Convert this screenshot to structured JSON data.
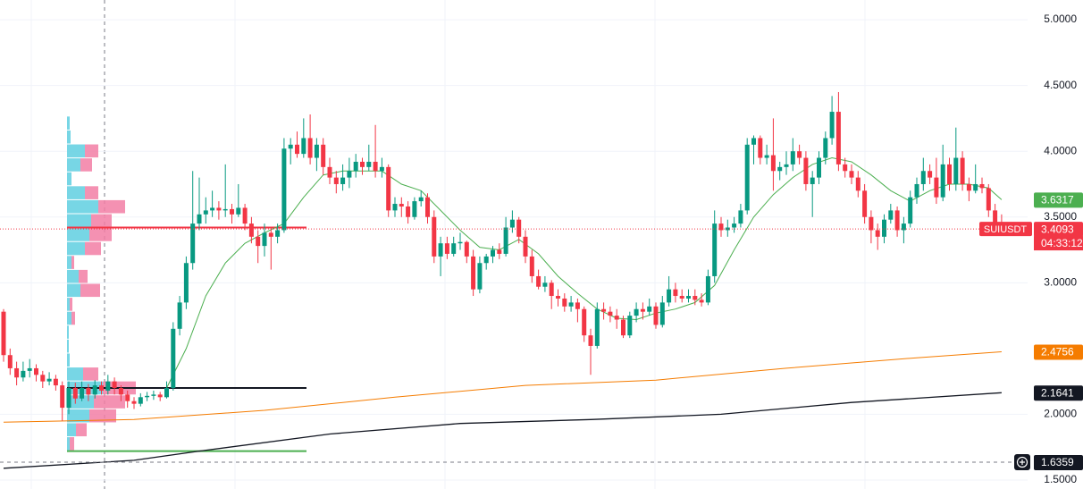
{
  "chart_data": {
    "type": "candlestick",
    "ohlc": [
      [
        2.78,
        2.8,
        2.4,
        2.45
      ],
      [
        2.45,
        2.5,
        2.3,
        2.35
      ],
      [
        2.35,
        2.4,
        2.22,
        2.28
      ],
      [
        2.28,
        2.4,
        2.25,
        2.33
      ],
      [
        2.33,
        2.42,
        2.28,
        2.35
      ],
      [
        2.35,
        2.38,
        2.25,
        2.3
      ],
      [
        2.3,
        2.33,
        2.2,
        2.25
      ],
      [
        2.25,
        2.32,
        2.22,
        2.27
      ],
      [
        2.27,
        2.3,
        2.18,
        2.22
      ],
      [
        2.22,
        2.25,
        1.95,
        2.05
      ],
      [
        2.05,
        2.25,
        2.0,
        2.2
      ],
      [
        2.2,
        2.24,
        2.08,
        2.12
      ],
      [
        2.12,
        2.25,
        2.1,
        2.2
      ],
      [
        2.2,
        2.23,
        2.1,
        2.15
      ],
      [
        2.15,
        2.26,
        2.12,
        2.22
      ],
      [
        2.22,
        2.25,
        2.15,
        2.18
      ],
      [
        2.18,
        2.3,
        2.15,
        2.25
      ],
      [
        2.25,
        2.28,
        2.15,
        2.2
      ],
      [
        2.2,
        2.22,
        2.1,
        2.15
      ],
      [
        2.15,
        2.18,
        2.05,
        2.1
      ],
      [
        2.1,
        2.13,
        2.04,
        2.08
      ],
      [
        2.08,
        2.16,
        2.06,
        2.13
      ],
      [
        2.13,
        2.17,
        2.1,
        2.14
      ],
      [
        2.14,
        2.18,
        2.11,
        2.15
      ],
      [
        2.15,
        2.17,
        2.1,
        2.13
      ],
      [
        2.13,
        2.25,
        2.12,
        2.2
      ],
      [
        2.2,
        2.7,
        2.18,
        2.65
      ],
      [
        2.65,
        2.9,
        2.6,
        2.85
      ],
      [
        2.85,
        3.2,
        2.8,
        3.15
      ],
      [
        3.15,
        3.85,
        3.1,
        3.45
      ],
      [
        3.45,
        3.8,
        3.4,
        3.52
      ],
      [
        3.52,
        3.65,
        3.45,
        3.55
      ],
      [
        3.55,
        3.7,
        3.5,
        3.57
      ],
      [
        3.57,
        3.62,
        3.48,
        3.55
      ],
      [
        3.55,
        3.9,
        3.5,
        3.56
      ],
      [
        3.56,
        3.6,
        3.45,
        3.52
      ],
      [
        3.52,
        3.75,
        3.5,
        3.57
      ],
      [
        3.57,
        3.6,
        3.4,
        3.45
      ],
      [
        3.45,
        3.5,
        3.3,
        3.35
      ],
      [
        3.35,
        3.4,
        3.15,
        3.28
      ],
      [
        3.28,
        3.45,
        3.2,
        3.38
      ],
      [
        3.38,
        3.42,
        3.1,
        3.35
      ],
      [
        3.35,
        3.45,
        3.3,
        3.4
      ],
      [
        3.4,
        4.1,
        3.38,
        4.02
      ],
      [
        4.02,
        4.1,
        3.9,
        4.05
      ],
      [
        4.05,
        4.15,
        3.95,
        3.98
      ],
      [
        3.98,
        4.25,
        3.95,
        4.1
      ],
      [
        4.1,
        4.28,
        3.9,
        3.95
      ],
      [
        3.95,
        4.1,
        3.85,
        4.05
      ],
      [
        4.05,
        4.1,
        3.82,
        3.88
      ],
      [
        3.88,
        3.95,
        3.75,
        3.8
      ],
      [
        3.8,
        3.85,
        3.68,
        3.75
      ],
      [
        3.75,
        3.9,
        3.7,
        3.8
      ],
      [
        3.8,
        3.95,
        3.72,
        3.85
      ],
      [
        3.85,
        3.98,
        3.8,
        3.92
      ],
      [
        3.92,
        3.95,
        3.82,
        3.88
      ],
      [
        3.88,
        4.05,
        3.85,
        3.92
      ],
      [
        3.92,
        4.2,
        3.8,
        3.85
      ],
      [
        3.85,
        3.95,
        3.8,
        3.88
      ],
      [
        3.88,
        3.9,
        3.5,
        3.55
      ],
      [
        3.55,
        3.65,
        3.5,
        3.6
      ],
      [
        3.6,
        3.65,
        3.5,
        3.58
      ],
      [
        3.58,
        3.62,
        3.45,
        3.5
      ],
      [
        3.5,
        3.65,
        3.48,
        3.62
      ],
      [
        3.62,
        3.7,
        3.58,
        3.65
      ],
      [
        3.65,
        3.68,
        3.45,
        3.5
      ],
      [
        3.5,
        3.55,
        3.15,
        3.2
      ],
      [
        3.2,
        3.35,
        3.05,
        3.3
      ],
      [
        3.3,
        3.35,
        3.18,
        3.22
      ],
      [
        3.22,
        3.35,
        3.2,
        3.3
      ],
      [
        3.3,
        3.38,
        3.25,
        3.31
      ],
      [
        3.31,
        3.32,
        3.15,
        3.2
      ],
      [
        3.2,
        3.25,
        2.9,
        2.95
      ],
      [
        2.95,
        3.2,
        2.92,
        3.15
      ],
      [
        3.15,
        3.22,
        3.1,
        3.2
      ],
      [
        3.2,
        3.28,
        3.15,
        3.25
      ],
      [
        3.25,
        3.3,
        3.18,
        3.22
      ],
      [
        3.22,
        3.5,
        3.2,
        3.42
      ],
      [
        3.42,
        3.55,
        3.38,
        3.48
      ],
      [
        3.48,
        3.5,
        3.3,
        3.35
      ],
      [
        3.35,
        3.4,
        3.15,
        3.2
      ],
      [
        3.2,
        3.25,
        3.0,
        3.05
      ],
      [
        3.05,
        3.1,
        2.95,
        2.97
      ],
      [
        2.97,
        3.05,
        2.93,
        3.0
      ],
      [
        3.0,
        3.02,
        2.8,
        2.9
      ],
      [
        2.9,
        2.95,
        2.82,
        2.88
      ],
      [
        2.88,
        2.92,
        2.78,
        2.82
      ],
      [
        2.82,
        2.9,
        2.78,
        2.85
      ],
      [
        2.85,
        2.88,
        2.7,
        2.8
      ],
      [
        2.8,
        2.82,
        2.55,
        2.6
      ],
      [
        2.6,
        2.65,
        2.3,
        2.52
      ],
      [
        2.52,
        2.85,
        2.5,
        2.8
      ],
      [
        2.8,
        2.85,
        2.72,
        2.78
      ],
      [
        2.78,
        2.82,
        2.7,
        2.75
      ],
      [
        2.75,
        2.8,
        2.65,
        2.72
      ],
      [
        2.72,
        2.75,
        2.58,
        2.6
      ],
      [
        2.6,
        2.78,
        2.58,
        2.75
      ],
      [
        2.75,
        2.85,
        2.7,
        2.8
      ],
      [
        2.8,
        2.85,
        2.72,
        2.78
      ],
      [
        2.78,
        2.88,
        2.75,
        2.82
      ],
      [
        2.82,
        2.85,
        2.65,
        2.68
      ],
      [
        2.68,
        2.9,
        2.66,
        2.85
      ],
      [
        2.85,
        3.05,
        2.82,
        2.95
      ],
      [
        2.95,
        3.0,
        2.85,
        2.9
      ],
      [
        2.9,
        2.95,
        2.85,
        2.88
      ],
      [
        2.88,
        2.95,
        2.85,
        2.9
      ],
      [
        2.9,
        2.95,
        2.83,
        2.87
      ],
      [
        2.87,
        2.92,
        2.82,
        2.85
      ],
      [
        2.85,
        3.1,
        2.83,
        3.05
      ],
      [
        3.05,
        3.55,
        3.0,
        3.45
      ],
      [
        3.45,
        3.5,
        3.35,
        3.4
      ],
      [
        3.4,
        3.48,
        3.35,
        3.42
      ],
      [
        3.42,
        3.5,
        3.38,
        3.45
      ],
      [
        3.45,
        3.6,
        3.42,
        3.55
      ],
      [
        3.55,
        4.1,
        3.52,
        4.05
      ],
      [
        4.05,
        4.12,
        3.9,
        4.1
      ],
      [
        4.1,
        4.12,
        3.9,
        3.95
      ],
      [
        3.95,
        4.05,
        3.9,
        3.97
      ],
      [
        3.97,
        4.25,
        3.7,
        3.85
      ],
      [
        3.85,
        3.92,
        3.78,
        3.88
      ],
      [
        3.88,
        4.0,
        3.82,
        3.9
      ],
      [
        3.9,
        4.1,
        3.85,
        4.0
      ],
      [
        4.0,
        4.05,
        3.9,
        3.95
      ],
      [
        3.95,
        4.0,
        3.7,
        3.75
      ],
      [
        3.75,
        3.85,
        3.5,
        3.8
      ],
      [
        3.8,
        4.0,
        3.75,
        3.95
      ],
      [
        3.95,
        4.15,
        3.9,
        4.1
      ],
      [
        4.1,
        4.42,
        4.05,
        4.3
      ],
      [
        4.3,
        4.45,
        3.85,
        3.9
      ],
      [
        3.9,
        3.95,
        3.8,
        3.85
      ],
      [
        3.85,
        3.9,
        3.75,
        3.8
      ],
      [
        3.8,
        3.85,
        3.65,
        3.7
      ],
      [
        3.7,
        3.75,
        3.45,
        3.5
      ],
      [
        3.5,
        3.55,
        3.3,
        3.4
      ],
      [
        3.4,
        3.45,
        3.25,
        3.35
      ],
      [
        3.35,
        3.52,
        3.3,
        3.48
      ],
      [
        3.48,
        3.6,
        3.45,
        3.55
      ],
      [
        3.55,
        3.58,
        3.35,
        3.4
      ],
      [
        3.4,
        3.5,
        3.3,
        3.45
      ],
      [
        3.45,
        3.7,
        3.42,
        3.65
      ],
      [
        3.65,
        3.8,
        3.6,
        3.75
      ],
      [
        3.75,
        3.95,
        3.7,
        3.85
      ],
      [
        3.85,
        3.9,
        3.75,
        3.8
      ],
      [
        3.8,
        3.95,
        3.6,
        3.65
      ],
      [
        3.65,
        4.05,
        3.62,
        3.9
      ],
      [
        3.9,
        3.95,
        3.7,
        3.75
      ],
      [
        3.75,
        4.18,
        3.7,
        3.95
      ],
      [
        3.95,
        4.0,
        3.7,
        3.75
      ],
      [
        3.75,
        3.8,
        3.62,
        3.7
      ],
      [
        3.7,
        3.9,
        3.68,
        3.75
      ],
      [
        3.75,
        3.8,
        3.68,
        3.72
      ],
      [
        3.72,
        3.75,
        3.5,
        3.55
      ],
      [
        3.55,
        3.6,
        3.38,
        3.45
      ],
      [
        3.45,
        3.52,
        3.4,
        3.4093
      ]
    ],
    "up_color": "#089981",
    "down_color": "#f23645",
    "lines": [
      {
        "color": "#4caf50",
        "x": [
          25,
          28,
          31,
          34,
          37,
          40,
          43,
          46,
          49,
          52,
          55,
          58,
          61,
          64,
          67,
          70,
          73,
          76,
          79,
          82,
          85,
          88,
          91,
          94,
          97,
          100,
          103,
          106,
          109,
          112,
          115,
          118,
          121,
          124,
          127,
          130,
          133,
          136,
          139,
          142,
          145,
          148,
          151,
          153
        ],
        "values": [
          2.2,
          2.5,
          2.9,
          3.15,
          3.3,
          3.38,
          3.45,
          3.65,
          3.82,
          3.85,
          3.85,
          3.85,
          3.75,
          3.7,
          3.55,
          3.4,
          3.27,
          3.25,
          3.33,
          3.22,
          3.05,
          2.92,
          2.8,
          2.73,
          2.72,
          2.77,
          2.8,
          2.85,
          2.98,
          3.25,
          3.5,
          3.67,
          3.8,
          3.9,
          3.95,
          3.92,
          3.82,
          3.7,
          3.62,
          3.7,
          3.75,
          3.75,
          3.72,
          3.6317
        ]
      },
      {
        "color": "#f57c00",
        "x": [
          0,
          20,
          40,
          60,
          80,
          100,
          120,
          140,
          153
        ],
        "values": [
          1.94,
          1.96,
          2.03,
          2.13,
          2.22,
          2.26,
          2.35,
          2.43,
          2.4756
        ]
      },
      {
        "color": "#131722",
        "x": [
          0,
          20,
          30,
          50,
          70,
          90,
          110,
          130,
          153
        ],
        "values": [
          1.59,
          1.65,
          1.72,
          1.85,
          1.93,
          1.96,
          2.0,
          2.09,
          2.1641
        ]
      }
    ],
    "volume_profile": {
      "bins": [
        1.72,
        1.826,
        1.932,
        2.038,
        2.144,
        2.25,
        2.356,
        2.462,
        2.568,
        2.674,
        2.78,
        2.886,
        2.992,
        3.098,
        3.204,
        3.31,
        3.416,
        3.522,
        3.628,
        3.734,
        3.84,
        3.946,
        4.052,
        4.158,
        4.264
      ],
      "up": [
        3,
        10,
        25,
        30,
        40,
        18,
        3,
        2,
        2,
        5,
        3,
        15,
        13,
        5,
        20,
        25,
        27,
        35,
        20,
        5,
        15,
        20,
        4,
        3
      ],
      "down": [
        5,
        12,
        30,
        35,
        37,
        17,
        0,
        0,
        0,
        4,
        3,
        22,
        10,
        3,
        18,
        25,
        23,
        30,
        15,
        0,
        13,
        15,
        0,
        0
      ],
      "up_color": "#5fcfe0",
      "down_color": "#f27ea4"
    },
    "levels": [
      {
        "value": 3.42,
        "color": "#f23645"
      },
      {
        "value": 2.2,
        "color": "#131722"
      },
      {
        "value": 1.72,
        "color": "#4caf50"
      }
    ],
    "price_tags": [
      {
        "value": 3.6317,
        "color": "#4caf50"
      },
      {
        "value": 3.4093,
        "color": "#f23645",
        "symbol": "SUIUSDT",
        "countdown": "04:33:12"
      },
      {
        "value": 2.4756,
        "color": "#f57c00"
      },
      {
        "value": 2.1641,
        "color": "#131722"
      },
      {
        "value": 1.6359,
        "color": "#131722"
      }
    ],
    "ylim": [
      1.432,
      5.15
    ],
    "yticks": [
      {
        "value": 1.5,
        "label": "1.5000"
      },
      {
        "value": 2,
        "label": "2.0000"
      },
      {
        "value": 3,
        "label": "3.0000"
      },
      {
        "value": 3.5,
        "label": "3.5000"
      },
      {
        "value": 4,
        "label": "4.0000"
      },
      {
        "value": 4.5,
        "label": "4.5000"
      },
      {
        "value": 5,
        "label": "5.0000"
      }
    ],
    "grid": true
  }
}
